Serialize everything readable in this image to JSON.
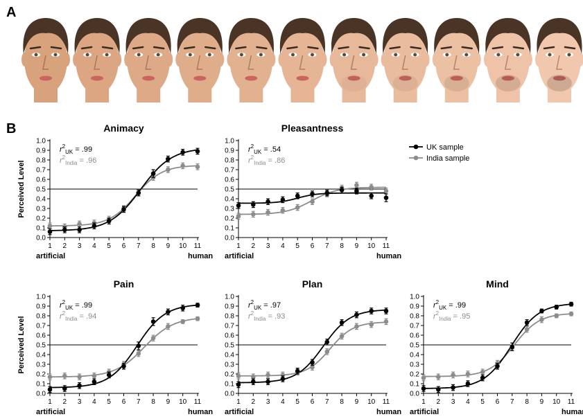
{
  "panel_letters": {
    "a": "A",
    "b": "B"
  },
  "faces": {
    "count": 11,
    "skin_from": "#d8a27c",
    "skin_to": "#f1c7ad",
    "hair": "#4a3426"
  },
  "legend": {
    "items": [
      {
        "label": "UK sample",
        "color": "#000000"
      },
      {
        "label": "India sample",
        "color": "#8c8c8c"
      }
    ]
  },
  "axis_text": {
    "ylabel": "Perceived Level",
    "x_left": "artificial",
    "x_right": "human"
  },
  "chart_data": [
    {
      "type": "scatter",
      "title": "Animacy",
      "x": [
        1,
        2,
        3,
        4,
        5,
        6,
        7,
        8,
        9,
        10,
        11
      ],
      "xlim": [
        1,
        11
      ],
      "ylim": [
        0,
        1
      ],
      "yticks": [
        "0.0",
        "0.1",
        "0.2",
        "0.3",
        "0.4",
        "0.5",
        "0.6",
        "0.7",
        "0.8",
        "0.9",
        "1.0"
      ],
      "reference_line": 0.5,
      "r2_uk": ".99",
      "r2_india": ".96",
      "series": [
        {
          "name": "UK sample",
          "color": "#000000",
          "values": [
            0.06,
            0.08,
            0.08,
            0.12,
            0.17,
            0.29,
            0.46,
            0.66,
            0.81,
            0.88,
            0.89
          ],
          "errors": [
            0.03,
            0.03,
            0.03,
            0.03,
            0.03,
            0.03,
            0.03,
            0.04,
            0.03,
            0.03,
            0.03
          ]
        },
        {
          "name": "India sample",
          "color": "#8c8c8c",
          "values": [
            0.12,
            0.11,
            0.14,
            0.15,
            0.19,
            0.3,
            0.46,
            0.62,
            0.7,
            0.74,
            0.73
          ],
          "errors": [
            0.03,
            0.03,
            0.03,
            0.03,
            0.03,
            0.03,
            0.03,
            0.03,
            0.03,
            0.03,
            0.03
          ]
        }
      ]
    },
    {
      "type": "scatter",
      "title": "Pleasantness",
      "x": [
        1,
        2,
        3,
        4,
        5,
        6,
        7,
        8,
        9,
        10,
        11
      ],
      "xlim": [
        1,
        11
      ],
      "ylim": [
        0,
        1
      ],
      "yticks": [
        "0.0",
        "0.1",
        "0.2",
        "0.3",
        "0.4",
        "0.5",
        "0.6",
        "0.7",
        "0.8",
        "0.9",
        "1.0"
      ],
      "reference_line": 0.5,
      "r2_uk": ".54",
      "r2_india": ".86",
      "series": [
        {
          "name": "UK sample",
          "color": "#000000",
          "values": [
            0.33,
            0.34,
            0.37,
            0.39,
            0.43,
            0.45,
            0.46,
            0.49,
            0.48,
            0.43,
            0.41
          ],
          "errors": [
            0.03,
            0.03,
            0.03,
            0.03,
            0.03,
            0.03,
            0.03,
            0.03,
            0.03,
            0.03,
            0.04
          ]
        },
        {
          "name": "India sample",
          "color": "#8c8c8c",
          "values": [
            0.22,
            0.24,
            0.26,
            0.28,
            0.31,
            0.37,
            0.45,
            0.51,
            0.54,
            0.52,
            0.48
          ],
          "errors": [
            0.03,
            0.03,
            0.03,
            0.03,
            0.03,
            0.03,
            0.03,
            0.03,
            0.03,
            0.03,
            0.03
          ]
        }
      ]
    },
    {
      "type": "scatter",
      "title": "Pain",
      "x": [
        1,
        2,
        3,
        4,
        5,
        6,
        7,
        8,
        9,
        10,
        11
      ],
      "xlim": [
        1,
        11
      ],
      "ylim": [
        0,
        1
      ],
      "yticks": [
        "0.0",
        "0.1",
        "0.2",
        "0.3",
        "0.4",
        "0.5",
        "0.6",
        "0.7",
        "0.8",
        "0.9",
        "1.0"
      ],
      "reference_line": 0.5,
      "r2_uk": ".99",
      "r2_india": ".94",
      "series": [
        {
          "name": "UK sample",
          "color": "#000000",
          "values": [
            0.04,
            0.05,
            0.08,
            0.12,
            0.19,
            0.28,
            0.49,
            0.74,
            0.84,
            0.88,
            0.91
          ],
          "errors": [
            0.03,
            0.03,
            0.03,
            0.03,
            0.03,
            0.03,
            0.04,
            0.04,
            0.03,
            0.03,
            0.02
          ]
        },
        {
          "name": "India sample",
          "color": "#8c8c8c",
          "values": [
            0.17,
            0.18,
            0.17,
            0.18,
            0.22,
            0.3,
            0.41,
            0.57,
            0.69,
            0.74,
            0.77
          ],
          "errors": [
            0.03,
            0.03,
            0.03,
            0.03,
            0.03,
            0.03,
            0.03,
            0.03,
            0.03,
            0.02,
            0.02
          ]
        }
      ]
    },
    {
      "type": "scatter",
      "title": "Plan",
      "x": [
        1,
        2,
        3,
        4,
        5,
        6,
        7,
        8,
        9,
        10,
        11
      ],
      "xlim": [
        1,
        11
      ],
      "ylim": [
        0,
        1
      ],
      "yticks": [
        "0.0",
        "0.1",
        "0.2",
        "0.3",
        "0.4",
        "0.5",
        "0.6",
        "0.7",
        "0.8",
        "0.9",
        "1.0"
      ],
      "reference_line": 0.5,
      "r2_uk": ".97",
      "r2_india": ".93",
      "series": [
        {
          "name": "UK sample",
          "color": "#000000",
          "values": [
            0.09,
            0.12,
            0.12,
            0.15,
            0.23,
            0.32,
            0.53,
            0.73,
            0.81,
            0.85,
            0.85
          ],
          "errors": [
            0.03,
            0.03,
            0.03,
            0.03,
            0.03,
            0.03,
            0.03,
            0.03,
            0.03,
            0.03,
            0.03
          ]
        },
        {
          "name": "India sample",
          "color": "#8c8c8c",
          "values": [
            0.18,
            0.17,
            0.19,
            0.19,
            0.22,
            0.27,
            0.43,
            0.59,
            0.69,
            0.71,
            0.74
          ],
          "errors": [
            0.03,
            0.03,
            0.03,
            0.03,
            0.03,
            0.03,
            0.03,
            0.03,
            0.03,
            0.03,
            0.03
          ]
        }
      ]
    },
    {
      "type": "scatter",
      "title": "Mind",
      "x": [
        1,
        2,
        3,
        4,
        5,
        6,
        7,
        8,
        9,
        10,
        11
      ],
      "xlim": [
        1,
        11
      ],
      "ylim": [
        0,
        1
      ],
      "yticks": [
        "0.0",
        "0.1",
        "0.2",
        "0.3",
        "0.4",
        "0.5",
        "0.6",
        "0.7",
        "0.8",
        "0.9",
        "1.0"
      ],
      "reference_line": 0.5,
      "r2_uk": ".99",
      "r2_india": ".95",
      "series": [
        {
          "name": "UK sample",
          "color": "#000000",
          "values": [
            0.05,
            0.04,
            0.06,
            0.1,
            0.16,
            0.28,
            0.48,
            0.73,
            0.85,
            0.89,
            0.92
          ],
          "errors": [
            0.03,
            0.03,
            0.03,
            0.03,
            0.03,
            0.03,
            0.04,
            0.03,
            0.02,
            0.02,
            0.02
          ]
        },
        {
          "name": "India sample",
          "color": "#8c8c8c",
          "values": [
            0.16,
            0.17,
            0.19,
            0.2,
            0.22,
            0.31,
            0.47,
            0.66,
            0.76,
            0.8,
            0.82
          ],
          "errors": [
            0.03,
            0.03,
            0.03,
            0.03,
            0.03,
            0.03,
            0.03,
            0.03,
            0.03,
            0.02,
            0.02
          ]
        }
      ]
    }
  ]
}
